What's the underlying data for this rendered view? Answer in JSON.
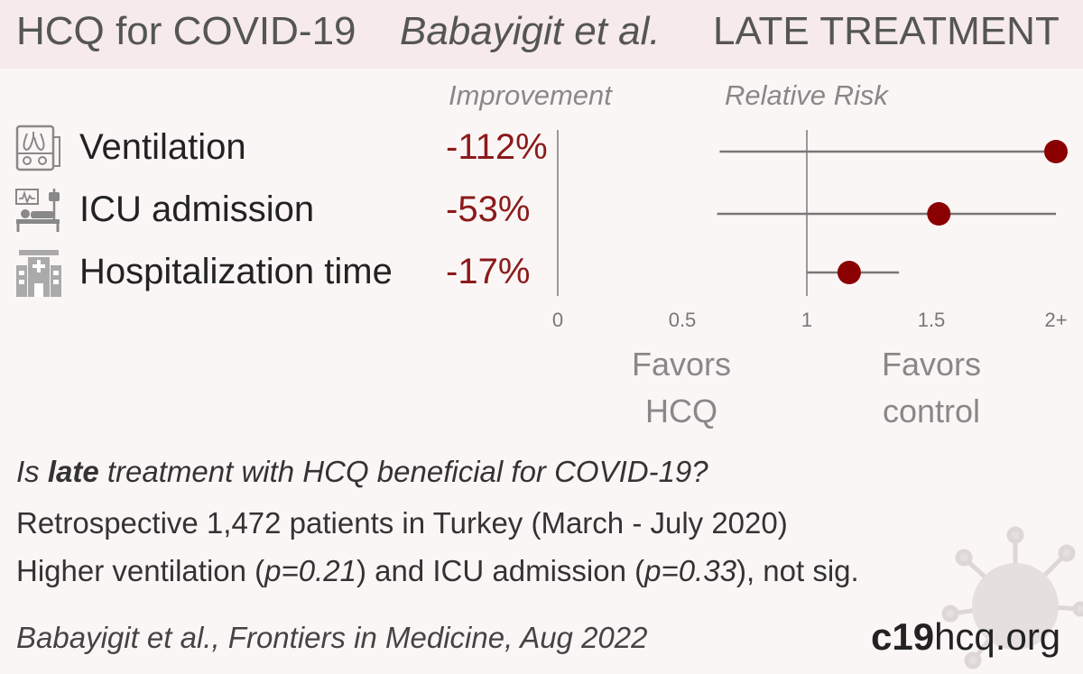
{
  "header": {
    "drug": "HCQ for COVID-19",
    "author": "Babayigit et al.",
    "phase": "LATE TREATMENT"
  },
  "columns": {
    "improvement": "Improvement",
    "relative_risk": "Relative Risk"
  },
  "rows": [
    {
      "label": "Ventilation",
      "improvement": "-112%",
      "icon": "ventilator-icon"
    },
    {
      "label": "ICU admission",
      "improvement": "-53%",
      "icon": "icu-bed-icon"
    },
    {
      "label": "Hospitalization time",
      "improvement": "-17%",
      "icon": "hospital-icon"
    }
  ],
  "favors": {
    "hcq": [
      "Favors",
      "HCQ"
    ],
    "control": [
      "Favors",
      "control"
    ]
  },
  "description": {
    "question_pre": "Is ",
    "question_bold": "late",
    "question_post": " treatment with HCQ beneficial for COVID-19?",
    "line2": "Retrospective 1,472 patients in Turkey (March - July 2020)",
    "line3_a": "Higher ventilation (",
    "line3_p1": "p=0.21",
    "line3_b": ") and ICU admission (",
    "line3_p2": "p=0.33",
    "line3_c": "), not sig."
  },
  "citation": "Babayigit et al., Frontiers in Medicine, Aug 2022",
  "brand": {
    "part1": "c19",
    "part2": "hcq.org"
  },
  "colors": {
    "point": "#8b0000",
    "improvement_text": "#8b1a1a",
    "header_bg": "#f6eaea",
    "background": "#fbf6f6"
  },
  "chart_data": {
    "type": "scatter",
    "title": "Relative Risk",
    "xlim": [
      0,
      2
    ],
    "x_ticks": [
      "0",
      "0.5",
      "1",
      "1.5",
      "2+"
    ],
    "x_tick_values": [
      0,
      0.5,
      1,
      1.5,
      2
    ],
    "reference_line": 1,
    "series": [
      {
        "name": "Ventilation",
        "rr": 2.12,
        "ci_low": 0.65,
        "ci_high": 2.12,
        "ci_high_truncated": true
      },
      {
        "name": "ICU admission",
        "rr": 1.53,
        "ci_low": 0.64,
        "ci_high": 2.1,
        "ci_high_truncated": true
      },
      {
        "name": "Hospitalization time",
        "rr": 1.17,
        "ci_low": 1.0,
        "ci_high": 1.37
      }
    ]
  }
}
